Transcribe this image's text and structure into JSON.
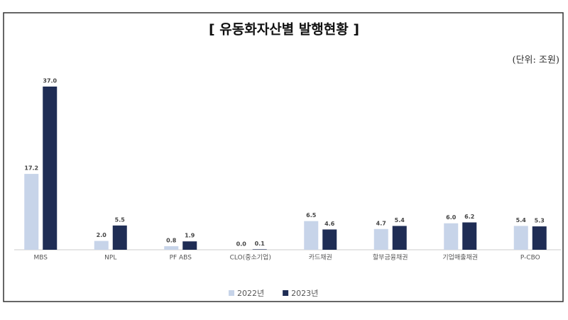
{
  "chart_data": {
    "type": "bar",
    "title": "[ 유동화자산별 발행현황 ]",
    "unit_label": "(단위: 조원)",
    "categories": [
      "MBS",
      "NPL",
      "PF ABS",
      "CLO(중소기업)",
      "카드채권",
      "할부금융채권",
      "기업매출채권",
      "P-CBO"
    ],
    "series": [
      {
        "name": "2022년",
        "color": "#c7d4e9",
        "values": [
          17.2,
          2.0,
          0.8,
          0.0,
          6.5,
          4.7,
          6.0,
          5.4
        ],
        "value_labels": [
          "17.2",
          "2.0",
          "0.8",
          "0.0",
          "6.5",
          "4.7",
          "6.0",
          "5.4"
        ]
      },
      {
        "name": "2023년",
        "color": "#1f2d55",
        "values": [
          37.0,
          5.5,
          1.9,
          0.1,
          4.6,
          5.4,
          6.2,
          5.3
        ],
        "value_labels": [
          "37.0",
          "5.5",
          "1.9",
          "0.1",
          "4.6",
          "5.4",
          "6.2",
          "5.3"
        ]
      }
    ],
    "grid": false
  }
}
